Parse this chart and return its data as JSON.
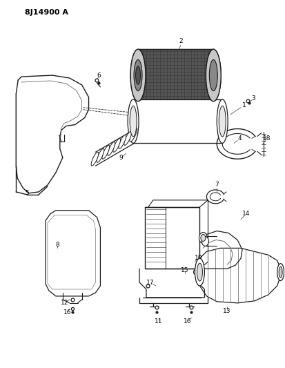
{
  "title": "8J14900 A",
  "bg": "#ffffff",
  "lc": "#1a1a1a",
  "fig_w": 4.13,
  "fig_h": 5.33,
  "dpi": 100
}
